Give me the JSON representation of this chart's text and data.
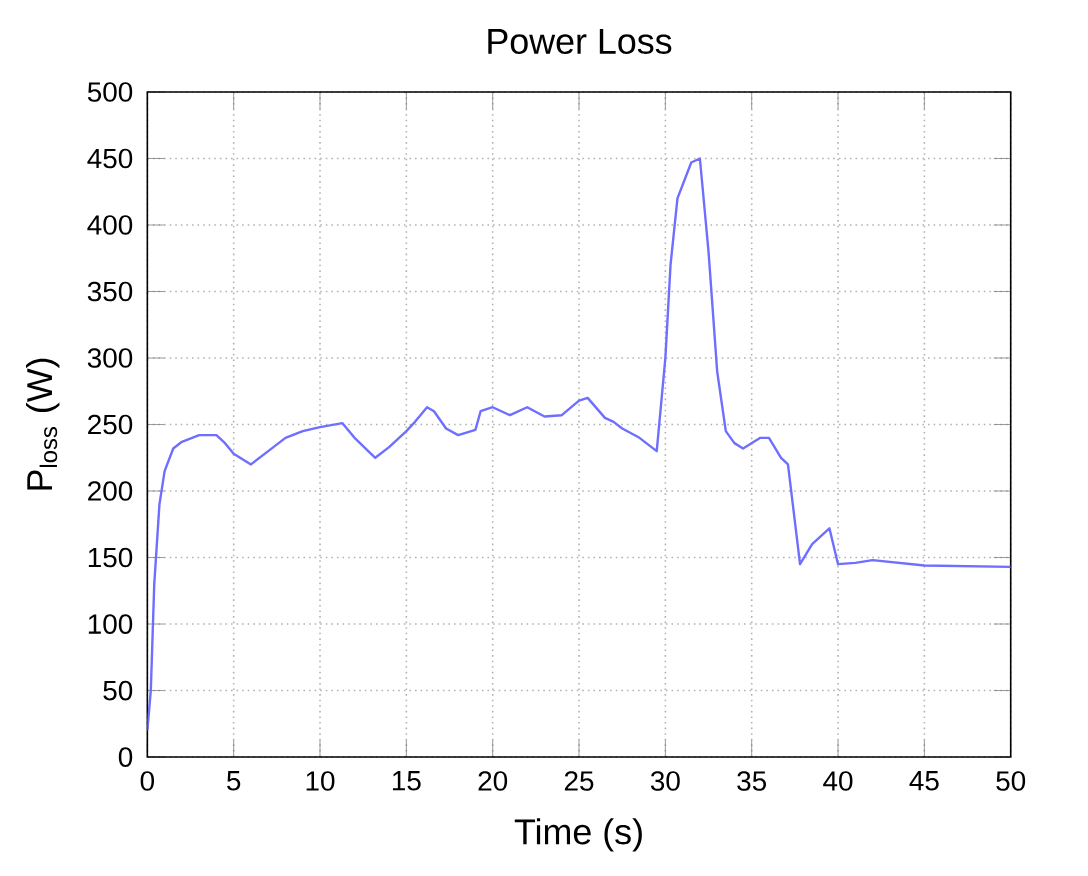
{
  "chart_data": {
    "type": "line",
    "title": "Power Loss",
    "xlabel": "Time (s)",
    "ylabel": "P$_{loss}$ (W)",
    "xlim": [
      0,
      50
    ],
    "ylim": [
      0,
      500
    ],
    "xticks": [
      0,
      5,
      10,
      15,
      20,
      25,
      30,
      35,
      40,
      45,
      50
    ],
    "yticks": [
      0,
      50,
      100,
      150,
      200,
      250,
      300,
      350,
      400,
      450,
      500
    ],
    "grid": true,
    "series": [
      {
        "color": "#6e6eff",
        "x": [
          0,
          0.2,
          0.4,
          0.7,
          1,
          1.5,
          2,
          3,
          4,
          4.5,
          5,
          6,
          7,
          8,
          9,
          10,
          11.3,
          12,
          13.2,
          14,
          15,
          15.5,
          16.2,
          16.6,
          17.3,
          18,
          19,
          19.3,
          20,
          21,
          22,
          23,
          24,
          25,
          25.5,
          26.5,
          27,
          27.5,
          28.5,
          29.5,
          30,
          30.3,
          30.7,
          31.5,
          32,
          32.5,
          33,
          33.5,
          34,
          34.5,
          35.5,
          36,
          36.7,
          37.1,
          37.8,
          38.5,
          39.5,
          40,
          41,
          42,
          45,
          50
        ],
        "values": [
          20,
          50,
          130,
          190,
          215,
          232,
          237,
          242,
          242,
          236,
          228,
          220,
          230,
          240,
          245,
          248,
          251,
          240,
          225,
          233,
          245,
          252,
          263,
          260,
          247,
          242,
          246,
          260,
          263,
          257,
          263,
          256,
          257,
          268,
          270,
          255,
          252,
          247,
          240,
          230,
          300,
          370,
          420,
          447,
          450,
          380,
          290,
          245,
          236,
          232,
          240,
          240,
          225,
          220,
          145,
          160,
          172,
          145,
          146,
          148,
          144,
          143
        ]
      }
    ]
  }
}
